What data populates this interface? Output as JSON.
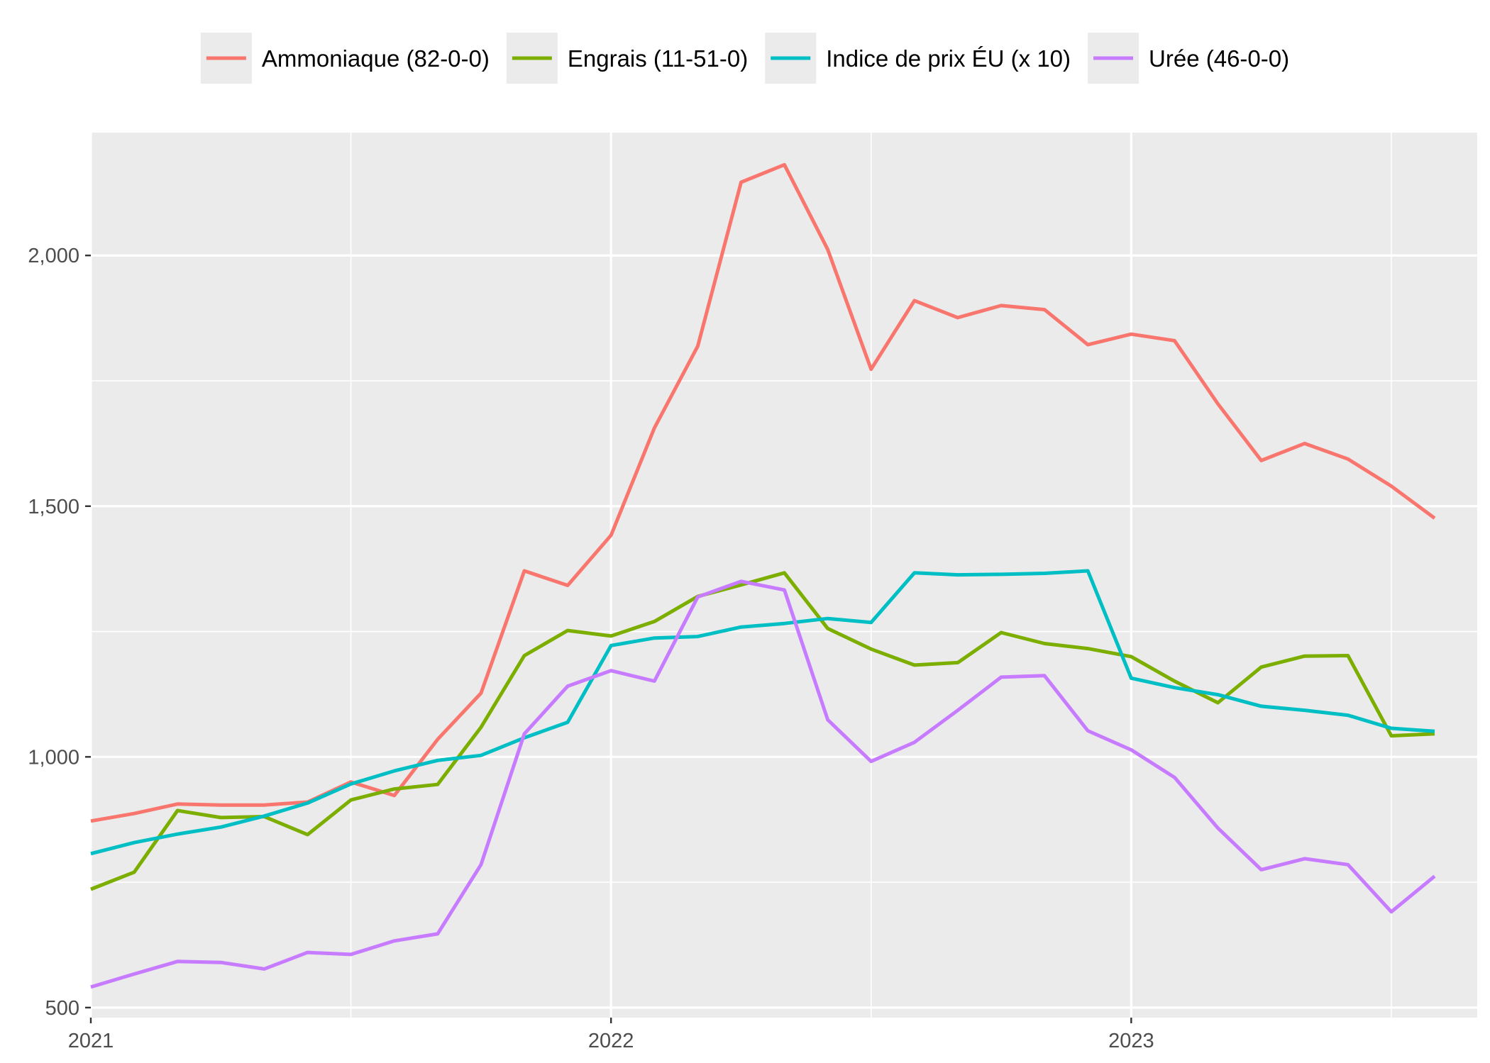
{
  "chart_data": {
    "type": "line",
    "title": "",
    "xlabel": "",
    "ylabel": "",
    "x_axis": {
      "type": "date",
      "range": [
        "2021-01",
        "2023-08"
      ],
      "ticks": [
        {
          "value": "2021-01",
          "label": "2021"
        },
        {
          "value": "2022-01",
          "label": "2022"
        },
        {
          "value": "2023-01",
          "label": "2023"
        }
      ],
      "minor_ticks": [
        "2021-07",
        "2022-07",
        "2023-07"
      ]
    },
    "y_axis": {
      "range": [
        480,
        2245
      ],
      "ticks": [
        {
          "value": 500,
          "label": "500"
        },
        {
          "value": 1000,
          "label": "1,000"
        },
        {
          "value": 1500,
          "label": "1,500"
        },
        {
          "value": 2000,
          "label": "2,000"
        }
      ],
      "minor_ticks": [
        750,
        1250,
        1750,
        2250
      ]
    },
    "grid": true,
    "legend_position": "top",
    "x": [
      "2021-01",
      "2021-02",
      "2021-03",
      "2021-04",
      "2021-05",
      "2021-06",
      "2021-07",
      "2021-08",
      "2021-09",
      "2021-10",
      "2021-11",
      "2021-12",
      "2022-01",
      "2022-02",
      "2022-03",
      "2022-04",
      "2022-05",
      "2022-06",
      "2022-07",
      "2022-08",
      "2022-09",
      "2022-10",
      "2022-11",
      "2022-12",
      "2023-01",
      "2023-02",
      "2023-03",
      "2023-04",
      "2023-05",
      "2023-06",
      "2023-07",
      "2023-08"
    ],
    "series": [
      {
        "name": "Ammoniaque (82-0-0)",
        "color": "#F8766D",
        "values": [
          872,
          887,
          906,
          904,
          904,
          910,
          950,
          923,
          1035,
          1127,
          1371,
          1342,
          1442,
          1656,
          1819,
          2146,
          2181,
          2012,
          1773,
          1910,
          1876,
          1900,
          1892,
          1822,
          1843,
          1830,
          1704,
          1591,
          1625,
          1594,
          1540,
          1476
        ]
      },
      {
        "name": "Engrais (11-51-0)",
        "color": "#7CAE00",
        "values": [
          736,
          770,
          893,
          879,
          881,
          845,
          914,
          936,
          945,
          1059,
          1202,
          1252,
          1241,
          1270,
          1320,
          1343,
          1367,
          1256,
          1215,
          1183,
          1188,
          1248,
          1226,
          1216,
          1200,
          1151,
          1108,
          1179,
          1201,
          1202,
          1042,
          1046
        ]
      },
      {
        "name": "Indice de prix ÉU (x 10)",
        "color": "#00BFC4",
        "values": [
          807,
          829,
          846,
          860,
          882,
          908,
          946,
          972,
          993,
          1003,
          1038,
          1069,
          1222,
          1237,
          1240,
          1259,
          1266,
          1276,
          1268,
          1367,
          1363,
          1364,
          1366,
          1371,
          1157,
          1138,
          1124,
          1101,
          1093,
          1083,
          1057,
          1051
        ]
      },
      {
        "name": "Urée (46-0-0)",
        "color": "#C77CFF",
        "values": [
          541,
          567,
          592,
          590,
          577,
          610,
          606,
          633,
          647,
          785,
          1046,
          1141,
          1172,
          1151,
          1319,
          1350,
          1333,
          1074,
          991,
          1029,
          1093,
          1159,
          1162,
          1052,
          1014,
          959,
          858,
          775,
          797,
          785,
          691,
          762
        ]
      }
    ]
  }
}
